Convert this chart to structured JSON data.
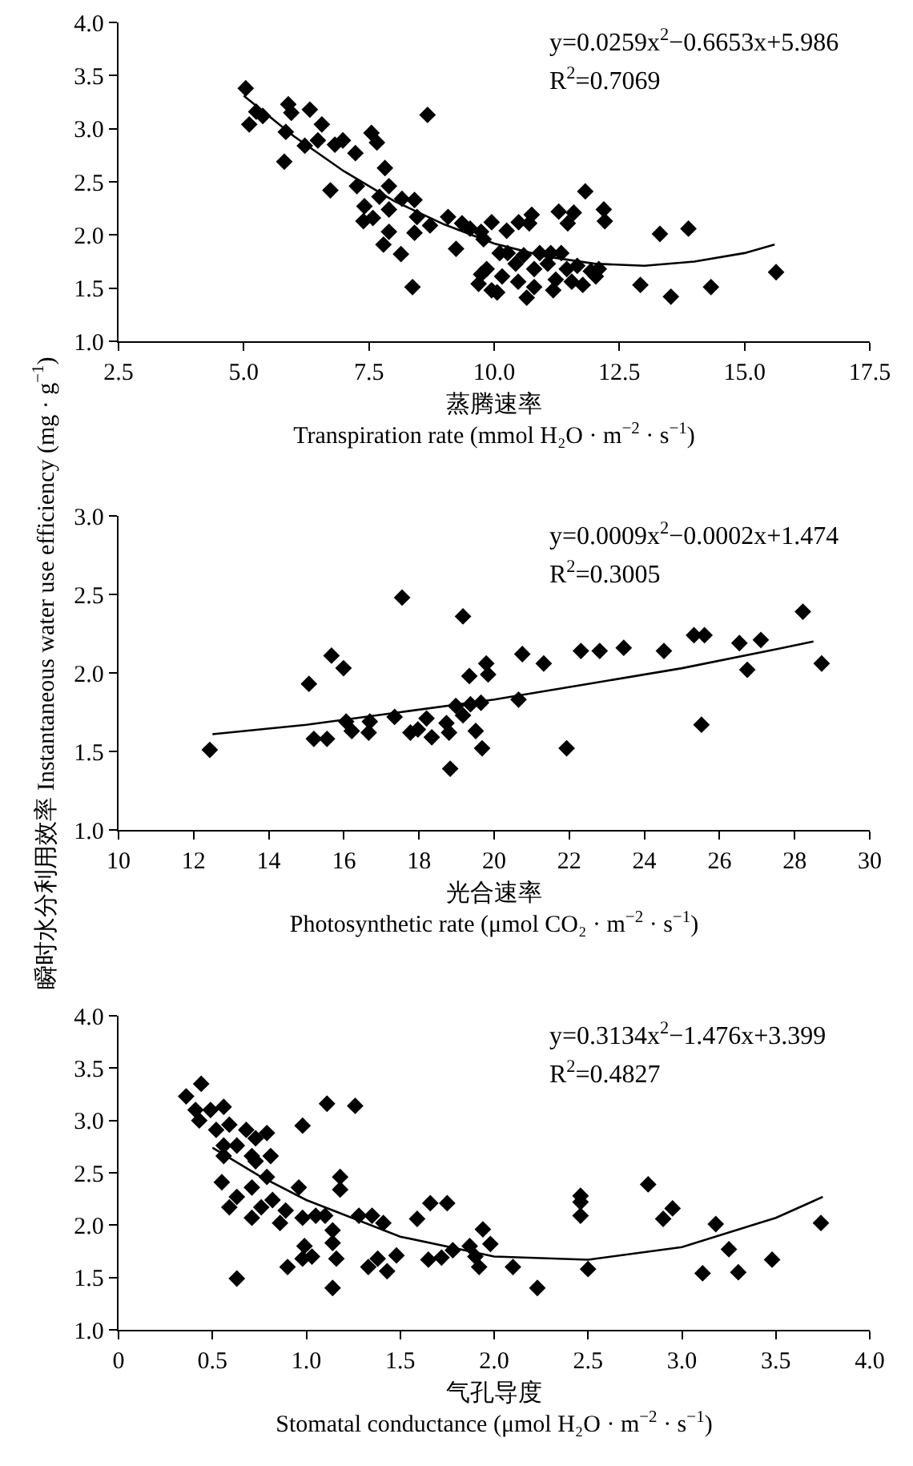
{
  "chart_data": [
    {
      "type": "scatter",
      "xlabel": "蒸腾速率\nTranspiration rate (mmol H₂O · m$^{−2}$ · s$^{−1}$)",
      "annotations": [
        "y=0.0259x$^{2}$−0.6653x+5.986",
        "R$^{2}$=0.7069"
      ],
      "xlim": [
        2.5,
        17.5
      ],
      "xticks": [
        {
          "value": 2.5,
          "label": "2.5"
        },
        {
          "value": 5,
          "label": "5.0"
        },
        {
          "value": 7.5,
          "label": "7.5"
        },
        {
          "value": 10,
          "label": "10.0"
        },
        {
          "value": 12.5,
          "label": "12.5"
        },
        {
          "value": 15,
          "label": "15.0"
        },
        {
          "value": 17.5,
          "label": "17.5"
        }
      ],
      "ylim": [
        1,
        4
      ],
      "yticks": [
        {
          "value": 1,
          "label": "1.0"
        },
        {
          "value": 1.5,
          "label": "1.5"
        },
        {
          "value": 2,
          "label": "2.0"
        },
        {
          "value": 2.5,
          "label": "2.5"
        },
        {
          "value": 3,
          "label": "3.0"
        },
        {
          "value": 3.5,
          "label": "3.5"
        },
        {
          "value": 4,
          "label": "4.0"
        }
      ],
      "series": [
        {
          "marker": "diamond",
          "color": "#000000",
          "x": [
            5.04,
            5.11,
            5.25,
            5.38,
            5.89,
            5.95,
            5.84,
            5.81,
            6.22,
            6.32,
            6.56,
            6.48,
            6.73,
            6.82,
            6.98,
            7.23,
            7.26,
            7.55,
            7.66,
            7.82,
            7.9,
            7.71,
            7.41,
            7.58,
            7.39,
            7.9,
            7.9,
            7.79,
            8.14,
            8.16,
            8.41,
            8.46,
            8.41,
            8.37,
            8.72,
            8.67,
            9.08,
            9.24,
            9.36,
            9.52,
            9.74,
            9.95,
            9.79,
            10.25,
            10.49,
            10.75,
            10.7,
            11.29,
            11.47,
            11.59,
            11.82,
            12.19,
            12.21,
            13.31,
            13.88,
            12.92,
            13.53,
            14.33,
            15.63,
            10.65,
            9.69,
            9.85,
            9.95,
            10.16,
            10.27,
            10.43,
            10.48,
            10.59,
            10.8,
            10.91,
            11.07,
            11.23,
            11.34,
            11.45,
            11.55,
            11.66,
            11.77,
            11.93,
            12.09,
            10.11,
            10.8,
            10.06,
            9.74,
            12.03,
            11.13,
            11.18
          ],
          "values": [
            3.38,
            3.04,
            3.16,
            3.12,
            3.23,
            3.15,
            2.97,
            2.69,
            2.84,
            3.18,
            3.04,
            2.89,
            2.42,
            2.85,
            2.89,
            2.77,
            2.46,
            2.96,
            2.87,
            2.63,
            2.46,
            2.36,
            2.27,
            2.16,
            2.13,
            2.24,
            2.03,
            1.91,
            1.82,
            2.34,
            2.33,
            2.17,
            2.02,
            1.51,
            2.09,
            3.13,
            2.17,
            1.87,
            2.11,
            2.06,
            2.03,
            2.12,
            1.96,
            2.04,
            2.12,
            2.19,
            2.11,
            2.22,
            2.11,
            2.21,
            2.41,
            2.24,
            2.13,
            2.01,
            2.06,
            1.53,
            1.42,
            1.51,
            1.65,
            1.41,
            1.54,
            1.68,
            1.48,
            1.61,
            1.83,
            1.73,
            1.56,
            1.81,
            1.68,
            1.83,
            1.73,
            1.58,
            1.83,
            1.68,
            1.56,
            1.71,
            1.53,
            1.66,
            1.68,
            1.83,
            1.51,
            1.46,
            1.63,
            1.61,
            1.83,
            1.48
          ]
        },
        {
          "type": "line",
          "marker": "none",
          "color": "#000000",
          "line_style": "solid",
          "x": [
            5,
            6,
            7,
            8,
            9,
            10,
            11,
            12,
            13,
            14,
            15,
            15.6
          ],
          "values": [
            3.31,
            2.93,
            2.6,
            2.32,
            2.1,
            1.92,
            1.8,
            1.73,
            1.71,
            1.75,
            1.83,
            1.91
          ]
        }
      ]
    },
    {
      "type": "scatter",
      "xlabel": "光合速率\nPhotosynthetic rate (μmol CO₂ · m$^{−2}$ · s$^{−1}$)",
      "ylabel": "瞬时水分利用效率 Instantaneous water use efficiency (mg · g$^{−1}$)",
      "annotations": [
        "y=0.0009x$^{2}$−0.0002x+1.474",
        "R$^{2}$=0.3005"
      ],
      "xlim": [
        10,
        30
      ],
      "xticks": [
        10,
        12,
        14,
        16,
        18,
        20,
        22,
        24,
        26,
        28,
        30
      ],
      "ylim": [
        1,
        3
      ],
      "yticks": [
        {
          "value": 1,
          "label": "1.0"
        },
        {
          "value": 1.5,
          "label": "1.5"
        },
        {
          "value": 2,
          "label": "2.0"
        },
        {
          "value": 2.5,
          "label": "2.5"
        },
        {
          "value": 3,
          "label": "3.0"
        }
      ],
      "series": [
        {
          "marker": "diamond",
          "color": "#000000",
          "x": [
            12.43,
            15.07,
            15.2,
            15.55,
            15.67,
            15.99,
            16.06,
            16.21,
            16.69,
            16.66,
            17.35,
            17.55,
            17.77,
            17.97,
            18.2,
            18.34,
            18.73,
            18.8,
            18.83,
            18.98,
            19.17,
            19.17,
            19.34,
            19.37,
            19.51,
            19.65,
            19.68,
            19.79,
            19.84,
            20.65,
            20.75,
            21.32,
            21.93,
            22.31,
            22.81,
            23.45,
            24.52,
            25.32,
            25.6,
            25.52,
            26.53,
            26.74,
            27.1,
            28.22,
            28.72
          ],
          "values": [
            1.51,
            1.93,
            1.58,
            1.58,
            2.11,
            2.03,
            1.69,
            1.63,
            1.69,
            1.62,
            1.72,
            2.48,
            1.62,
            1.64,
            1.71,
            1.59,
            1.68,
            1.62,
            1.39,
            1.79,
            2.36,
            1.73,
            1.98,
            1.8,
            1.63,
            1.81,
            1.52,
            2.06,
            1.99,
            1.83,
            2.12,
            2.06,
            1.52,
            2.14,
            2.14,
            2.16,
            2.14,
            2.24,
            2.24,
            1.67,
            2.19,
            2.02,
            2.21,
            2.39,
            2.06
          ]
        },
        {
          "type": "line",
          "marker": "none",
          "color": "#000000",
          "line_style": "solid",
          "x": [
            12.5,
            15,
            17.5,
            20,
            22.5,
            25,
            27.5,
            28.5
          ],
          "values": [
            1.61,
            1.67,
            1.75,
            1.83,
            1.93,
            2.03,
            2.15,
            2.2
          ]
        }
      ]
    },
    {
      "type": "scatter",
      "xlabel": "气孔导度\nStomatal conductance (μmol H₂O · m$^{−2}$ · s$^{−1}$)",
      "annotations": [
        "y=0.3134x$^{2}$−1.476x+3.399",
        "R$^{2}$=0.4827"
      ],
      "xlim": [
        0,
        4
      ],
      "xticks": [
        0,
        {
          "value": 0.5,
          "label": "0.5"
        },
        {
          "value": 1,
          "label": "1.0"
        },
        {
          "value": 1.5,
          "label": "1.5"
        },
        {
          "value": 2,
          "label": "2.0"
        },
        {
          "value": 2.5,
          "label": "2.5"
        },
        {
          "value": 3,
          "label": "3.0"
        },
        {
          "value": 3.5,
          "label": "3.5"
        },
        {
          "value": 4,
          "label": "4.0"
        }
      ],
      "ylim": [
        1,
        4
      ],
      "yticks": [
        {
          "value": 1,
          "label": "1.0"
        },
        {
          "value": 1.5,
          "label": "1.5"
        },
        {
          "value": 2,
          "label": "2.0"
        },
        {
          "value": 2.5,
          "label": "2.5"
        },
        {
          "value": 3,
          "label": "3.0"
        },
        {
          "value": 3.5,
          "label": "3.5"
        },
        {
          "value": 4,
          "label": "4.0"
        }
      ],
      "series": [
        {
          "marker": "diamond",
          "color": "#000000",
          "x": [
            0.36,
            0.44,
            0.41,
            0.43,
            0.49,
            0.52,
            0.56,
            0.56,
            0.59,
            0.63,
            0.56,
            0.68,
            0.73,
            0.71,
            0.79,
            0.81,
            0.73,
            0.55,
            0.63,
            0.59,
            0.71,
            0.79,
            0.71,
            0.76,
            0.82,
            0.86,
            0.89,
            0.96,
            0.98,
            0.98,
            1.05,
            1.1,
            1.11,
            1.26,
            1.18,
            1.18,
            1.14,
            1.14,
            1.16,
            0.99,
            0.98,
            1.03,
            0.9,
            0.63,
            1.28,
            1.35,
            1.41,
            1.33,
            1.38,
            1.43,
            1.48,
            1.59,
            1.66,
            1.75,
            1.65,
            1.72,
            1.78,
            1.87,
            1.9,
            1.92,
            1.94,
            1.98,
            2.1,
            2.23,
            2.46,
            2.46,
            2.46,
            2.5,
            2.82,
            2.9,
            2.95,
            3.18,
            3.25,
            3.3,
            3.11,
            3.48,
            3.74,
            1.14
          ],
          "values": [
            3.23,
            3.35,
            3.1,
            3.0,
            3.1,
            2.91,
            3.13,
            2.76,
            2.96,
            2.76,
            2.66,
            2.91,
            2.83,
            2.66,
            2.88,
            2.66,
            2.61,
            2.41,
            2.27,
            2.17,
            2.36,
            2.46,
            2.07,
            2.17,
            2.24,
            2.02,
            2.14,
            2.36,
            2.95,
            2.07,
            2.09,
            2.09,
            3.16,
            3.14,
            2.46,
            2.34,
            1.95,
            1.83,
            1.68,
            1.8,
            1.68,
            1.7,
            1.6,
            1.49,
            2.09,
            2.09,
            2.02,
            1.6,
            1.68,
            1.56,
            1.71,
            2.06,
            2.21,
            2.21,
            1.67,
            1.69,
            1.76,
            1.8,
            1.7,
            1.6,
            1.96,
            1.82,
            1.6,
            1.4,
            2.28,
            2.22,
            2.09,
            1.58,
            2.39,
            2.06,
            2.16,
            2.01,
            1.77,
            1.55,
            1.54,
            1.67,
            2.02,
            1.4
          ]
        },
        {
          "type": "line",
          "marker": "none",
          "color": "#000000",
          "line_style": "solid",
          "x": [
            0.5,
            0.75,
            1,
            1.5,
            2,
            2.5,
            3,
            3.5,
            3.75
          ],
          "values": [
            2.74,
            2.47,
            2.24,
            1.89,
            1.7,
            1.67,
            1.79,
            2.07,
            2.27
          ]
        }
      ]
    }
  ]
}
